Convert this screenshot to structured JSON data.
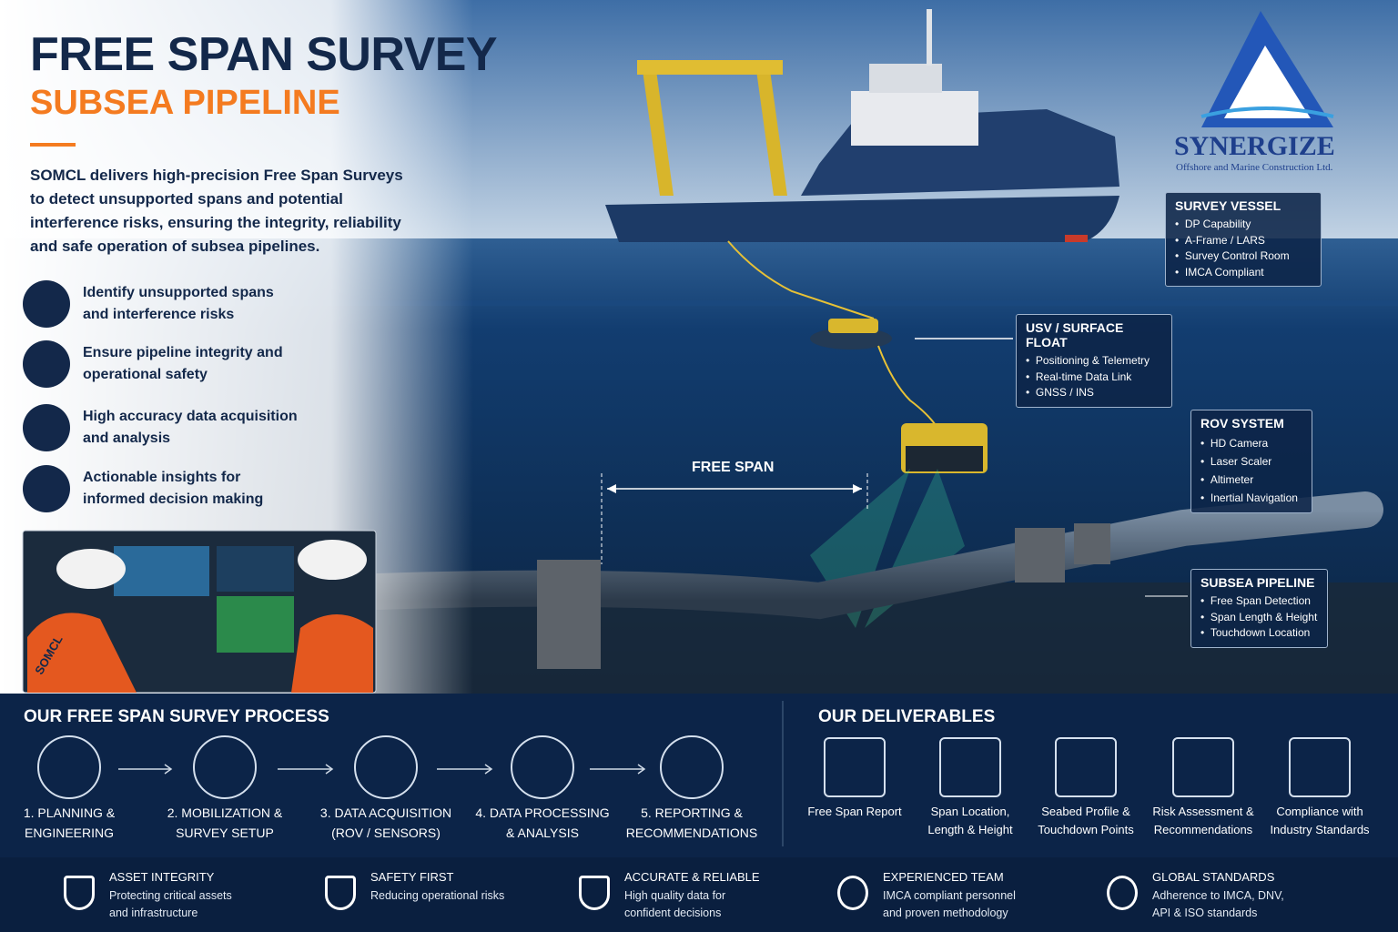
{
  "header": {
    "title": "FREE SPAN SURVEY",
    "subtitle": "SUBSEA PIPELINE",
    "intro": "SOMCL delivers high-precision Free Span Surveys to detect unsupported spans and potential interference risks, ensuring the integrity, reliability and safe operation of subsea pipelines."
  },
  "features": [
    "Identify unsupported spans and interference risks",
    "Ensure pipeline integrity and operational safety",
    "High accuracy data acquisition and analysis",
    "Actionable insights for informed decision making"
  ],
  "photo_label": "SOMCL",
  "logo": {
    "name": "SYNERGIZE",
    "tagline": "Offshore and Marine Construction Ltd."
  },
  "scene": {
    "free_span_label": "FREE SPAN"
  },
  "callouts": [
    {
      "title": "SURVEY VESSEL",
      "items": [
        "DP Capability",
        "A-Frame / LARS",
        "Survey Control Room",
        "IMCA Compliant"
      ]
    },
    {
      "title": "USV / SURFACE FLOAT",
      "items": [
        "Positioning & Telemetry",
        "Real-time Data Link",
        "GNSS / INS"
      ]
    },
    {
      "title": "ROV SYSTEM",
      "items": [
        "HD Camera",
        "Laser Scaler",
        "Altimeter",
        "Inertial Navigation"
      ]
    },
    {
      "title": "SUBSEA PIPELINE",
      "items": [
        "Free Span Detection",
        "Span Length & Height",
        "Touchdown Location"
      ]
    }
  ],
  "process": {
    "title": "OUR FREE SPAN SURVEY PROCESS",
    "steps": [
      "1. PLANNING & ENGINEERING",
      "2. MOBILIZATION & SURVEY SETUP",
      "3. DATA ACQUISITION (ROV / SENSORS)",
      "4. DATA PROCESSING & ANALYSIS",
      "5. REPORTING & RECOMMENDATIONS"
    ]
  },
  "deliverables": {
    "title": "OUR DELIVERABLES",
    "items": [
      "Free Span Report",
      "Span Location, Length & Height",
      "Seabed Profile & Touchdown Points",
      "Risk Assessment & Recommendations",
      "Compliance with Industry Standards"
    ]
  },
  "values": [
    {
      "title": "ASSET INTEGRITY",
      "text": "Protecting critical assets and infrastructure"
    },
    {
      "title": "SAFETY FIRST",
      "text": "Reducing operational risks"
    },
    {
      "title": "ACCURATE & RELIABLE",
      "text": "High quality data for confident decisions"
    },
    {
      "title": "EXPERIENCED TEAM",
      "text": "IMCA compliant personnel and proven methodology"
    },
    {
      "title": "GLOBAL STANDARDS",
      "text": "Adherence to IMCA, DNV, API & ISO standards"
    }
  ]
}
